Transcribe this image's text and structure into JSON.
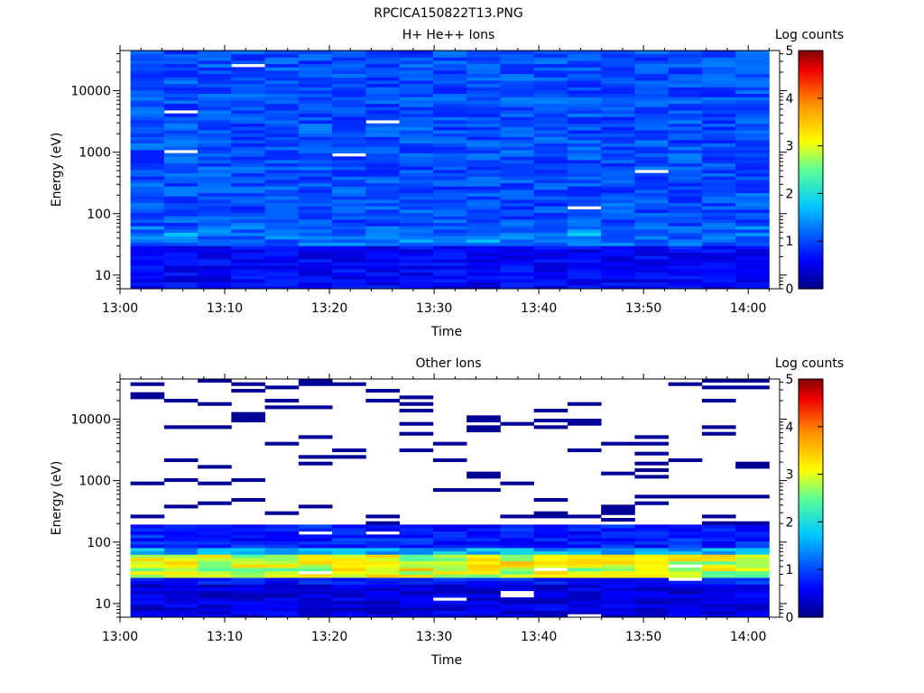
{
  "figure": {
    "title": "RPCICA150822T13.PNG"
  },
  "chart_data": [
    {
      "type": "heatmap",
      "title": "H+ He++ Ions",
      "xlabel": "Time",
      "ylabel": "Energy (eV)",
      "colorbar_label": "Log counts",
      "x_ticks": [
        "13:00",
        "13:10",
        "13:20",
        "13:30",
        "13:40",
        "13:50",
        "14:00"
      ],
      "y_ticks": [
        "10",
        "100",
        "1000",
        "10000"
      ],
      "y_scale": "log",
      "ylim": [
        6,
        45000
      ],
      "colorbar_ticks": [
        "0",
        "1",
        "2",
        "3",
        "4",
        "5"
      ],
      "clim": [
        0,
        5
      ],
      "colormap": "rainbow (dark blue to dark red)",
      "time_range": [
        "13:01",
        "14:02"
      ],
      "coverage": "all bins filled, white gaps at a few bins",
      "notes": "mostly 0.7-1.4 log counts at all energies; peaks of about 2 near 30-50 eV",
      "peaks": [
        {
          "time": "13:06",
          "energy_ev": 45,
          "log_counts": 1.9
        },
        {
          "time": "13:29",
          "energy_ev": 37,
          "log_counts": 1.7
        },
        {
          "time": "13:36",
          "energy_ev": 37,
          "log_counts": 1.8
        },
        {
          "time": "13:38",
          "energy_ev": 43,
          "log_counts": 1.7
        },
        {
          "time": "13:44",
          "energy_ev": 48,
          "log_counts": 2.0
        }
      ]
    },
    {
      "type": "heatmap",
      "title": "Other Ions",
      "xlabel": "Time",
      "ylabel": "Energy (eV)",
      "colorbar_label": "Log counts",
      "x_ticks": [
        "13:00",
        "13:10",
        "13:20",
        "13:30",
        "13:40",
        "13:50",
        "14:00"
      ],
      "y_ticks": [
        "10",
        "100",
        "1000",
        "10000"
      ],
      "y_scale": "log",
      "ylim": [
        6,
        45000
      ],
      "colorbar_ticks": [
        "0",
        "1",
        "2",
        "3",
        "4",
        "5"
      ],
      "clim": [
        0,
        5
      ],
      "colormap": "rainbow (dark blue to dark red)",
      "time_range": [
        "13:01",
        "14:02"
      ],
      "coverage": "continuous below about 200 eV, sparse thin streaks of about 0.1 log counts above 200 eV",
      "notes": "strong band of 3-4 log counts between about 28 and 60 eV; 0.5-1 log counts elsewhere below 200 eV",
      "peaks": [
        {
          "time": "13:06",
          "energy_ev": 44,
          "log_counts": 3.9
        },
        {
          "time": "13:25",
          "energy_ev": 44,
          "log_counts": 3.7
        },
        {
          "time": "13:28",
          "energy_ev": 36,
          "log_counts": 3.6
        },
        {
          "time": "13:35",
          "energy_ev": 38,
          "log_counts": 3.8
        },
        {
          "time": "13:38",
          "energy_ev": 44,
          "log_counts": 4.1
        },
        {
          "time": "13:44",
          "energy_ev": 44,
          "log_counts": 3.9
        },
        {
          "time": "13:51",
          "energy_ev": 44,
          "log_counts": 3.7
        },
        {
          "time": "13:57",
          "energy_ev": 36,
          "log_counts": 3.4
        }
      ]
    }
  ]
}
